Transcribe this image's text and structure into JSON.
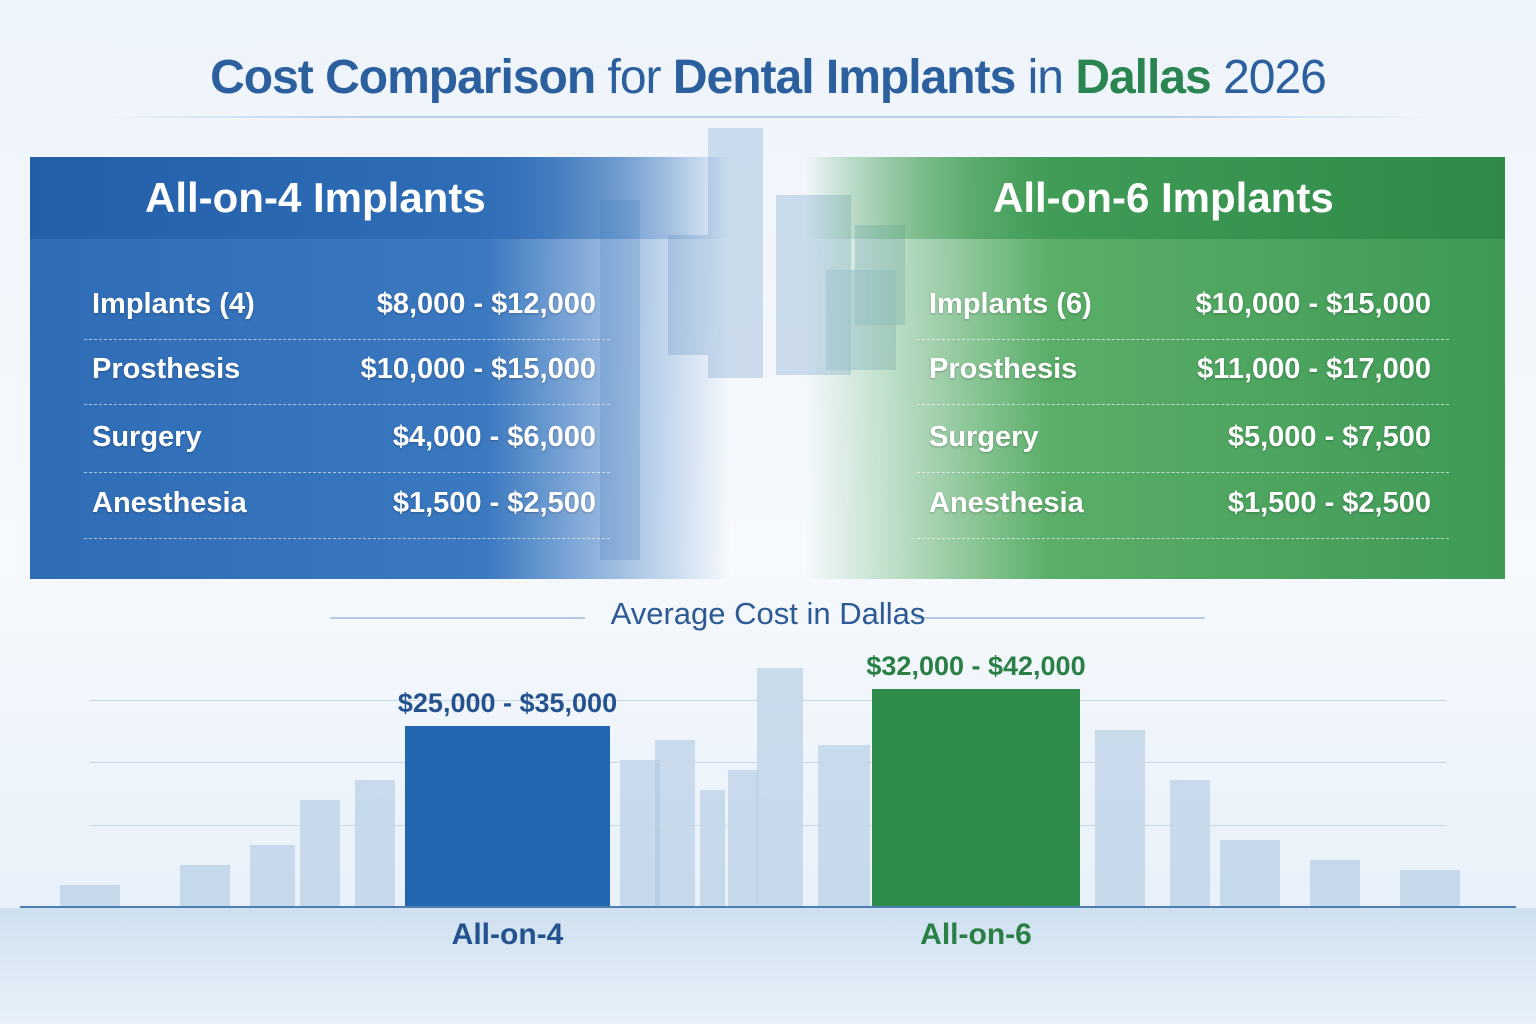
{
  "title": {
    "part1": "Cost Comparison",
    "part2": "for",
    "part3": "Dental Implants",
    "part4": "in",
    "part5": "Dallas",
    "part6": "2026"
  },
  "left_panel": {
    "heading": "All-on-4 Implants",
    "color": "#2e6cb6",
    "rows": [
      {
        "label": "Implants (4)",
        "value": "$8,000 - $12,000"
      },
      {
        "label": "Prosthesis",
        "value": "$10,000 - $15,000"
      },
      {
        "label": "Surgery",
        "value": "$4,000 - $6,000"
      },
      {
        "label": "Anesthesia",
        "value": "$1,500 - $2,500"
      }
    ]
  },
  "right_panel": {
    "heading": "All-on-6 Implants",
    "color": "#3e9a55",
    "rows": [
      {
        "label": "Implants (6)",
        "value": "$10,000 - $15,000"
      },
      {
        "label": "Prosthesis",
        "value": "$11,000 - $17,000"
      },
      {
        "label": "Surgery",
        "value": "$5,000 - $7,500"
      },
      {
        "label": "Anesthesia",
        "value": "$1,500 - $2,500"
      }
    ]
  },
  "chart_data": {
    "type": "bar",
    "title": "Average Cost in Dallas",
    "categories": [
      "All-on-4",
      "All-on-6"
    ],
    "value_ranges": [
      [
        25000,
        35000
      ],
      [
        32000,
        42000
      ]
    ],
    "values": [
      35000,
      42000
    ],
    "data_labels": [
      "$25,000 - $35,000",
      "$32,000 - $42,000"
    ],
    "colors": [
      "#2266b0",
      "#2e8c4c"
    ],
    "label_colors": [
      "#24528f",
      "#2a7f45"
    ],
    "ylim": [
      0,
      45000
    ],
    "grid": true,
    "axes_visible": false
  }
}
